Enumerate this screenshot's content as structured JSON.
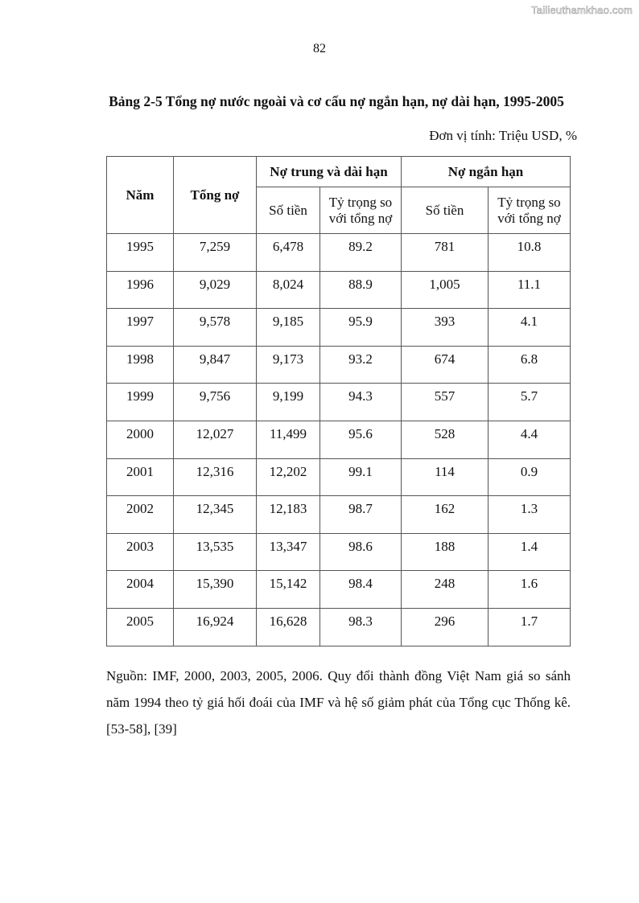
{
  "watermark": "Tailieuthamkhao.com",
  "page_number": "82",
  "title": "Bảng 2-5 Tổng nợ nước ngoài và cơ cấu nợ ngắn hạn, nợ dài hạn, 1995-2005",
  "unit": "Đơn vị tính: Triệu USD, %",
  "table": {
    "headers": {
      "year": "Năm",
      "total": "Tổng nợ",
      "long_term": "Nợ trung và dài hạn",
      "short_term": "Nợ ngắn hạn",
      "amount": "Số tiền",
      "share": "Tỷ trọng so với tổng nợ"
    },
    "rows": [
      [
        "1995",
        "7,259",
        "6,478",
        "89.2",
        "781",
        "10.8"
      ],
      [
        "1996",
        "9,029",
        "8,024",
        "88.9",
        "1,005",
        "11.1"
      ],
      [
        "1997",
        "9,578",
        "9,185",
        "95.9",
        "393",
        "4.1"
      ],
      [
        "1998",
        "9,847",
        "9,173",
        "93.2",
        "674",
        "6.8"
      ],
      [
        "1999",
        "9,756",
        "9,199",
        "94.3",
        "557",
        "5.7"
      ],
      [
        "2000",
        "12,027",
        "11,499",
        "95.6",
        "528",
        "4.4"
      ],
      [
        "2001",
        "12,316",
        "12,202",
        "99.1",
        "114",
        "0.9"
      ],
      [
        "2002",
        "12,345",
        "12,183",
        "98.7",
        "162",
        "1.3"
      ],
      [
        "2003",
        "13,535",
        "13,347",
        "98.6",
        "188",
        "1.4"
      ],
      [
        "2004",
        "15,390",
        "15,142",
        "98.4",
        "248",
        "1.6"
      ],
      [
        "2005",
        "16,924",
        "16,628",
        "98.3",
        "296",
        "1.7"
      ]
    ]
  },
  "source_note": "Nguồn: IMF, 2000, 2003, 2005, 2006. Quy đổi thành đồng Việt Nam giá so sánh năm 1994 theo tỷ giá hối đoái của IMF và hệ số giảm phát của Tổng cục Thống kê. [53-58], [39]"
}
